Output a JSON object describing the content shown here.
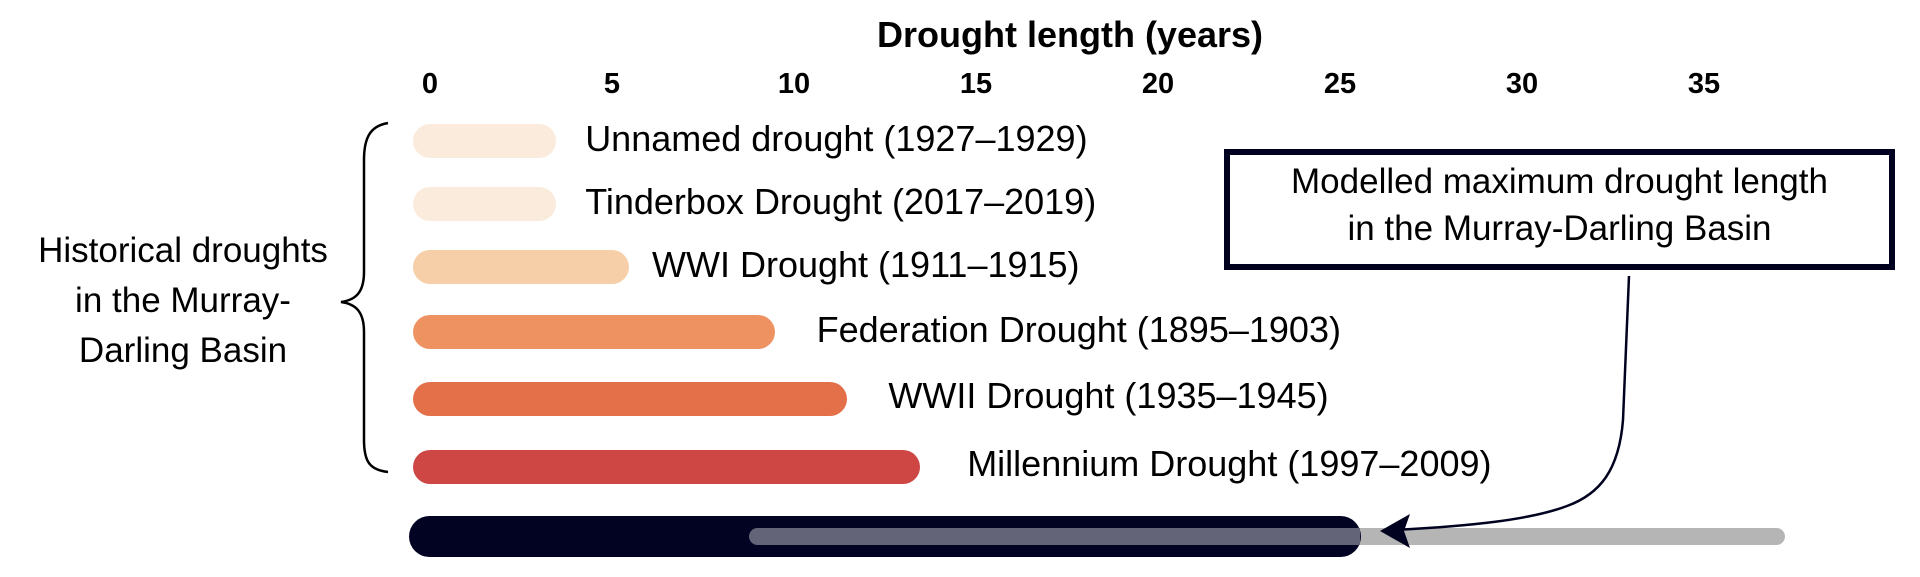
{
  "chart_data": {
    "type": "bar",
    "orientation": "horizontal",
    "title": "Drought length (years)",
    "xlabel": "Drought length (years)",
    "ylabel": "",
    "xlim": [
      0,
      37
    ],
    "xticks": [
      0,
      5,
      10,
      15,
      20,
      25,
      30,
      35
    ],
    "grid": false,
    "categories": [
      "Unnamed drought (1927–1929)",
      "Tinderbox Drought (2017–2019)",
      "WWI Drought (1911–1915)",
      "Federation Drought (1895–1903)",
      "WWII Drought (1935–1945)",
      "Millennium Drought (1997–2009)"
    ],
    "values": [
      3,
      3,
      5,
      9,
      11,
      13
    ],
    "colors": [
      "#FAEBDC",
      "#FAEBDC",
      "#F6CEA8",
      "#EE9262",
      "#E4704A",
      "#CF4744"
    ],
    "group_annotation": "Historical droughts in the Murray-Darling Basin",
    "modelled": {
      "label": "Modelled maximum drought length in the Murray-Darling Basin",
      "central_value": 25,
      "range": [
        9,
        37
      ],
      "central_color": "#020322",
      "range_color": "#B5B5B5",
      "range_overlap_color": "#636478"
    }
  },
  "axis": {
    "title": "Drought length (years)",
    "ticks": [
      "0",
      "5",
      "10",
      "15",
      "20",
      "25",
      "30",
      "35"
    ]
  },
  "droughts": [
    {
      "label": "Unnamed drought (1927–1929)",
      "years": 3,
      "color": "#FAEBDC"
    },
    {
      "label": "Tinderbox Drought (2017–2019)",
      "years": 3,
      "color": "#FAEBDC"
    },
    {
      "label": "WWI Drought (1911–1915)",
      "years": 5,
      "color": "#F6CEA8"
    },
    {
      "label": "Federation Drought (1895–1903)",
      "years": 9,
      "color": "#EE9262"
    },
    {
      "label": "WWII Drought (1935–1945)",
      "years": 11,
      "color": "#E4704A"
    },
    {
      "label": "Millennium Drought (1997–2009)",
      "years": 13,
      "color": "#CF4744"
    }
  ],
  "group_label": {
    "lines": [
      "Historical droughts",
      "in the Murray-",
      "Darling Basin"
    ]
  },
  "model_box": {
    "lines": [
      "Modelled maximum drought length",
      "in the Murray-Darling Basin"
    ]
  }
}
